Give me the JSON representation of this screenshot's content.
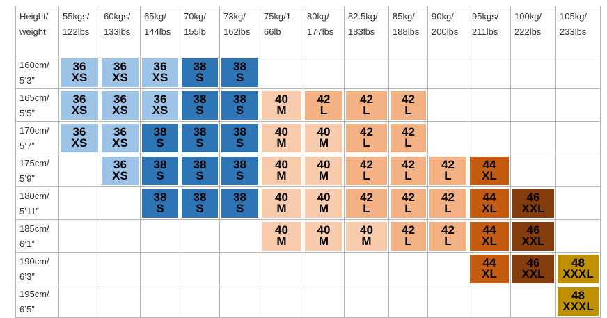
{
  "table": {
    "columns": [
      "Height/\nweight",
      "55kgs/\n122lbs",
      "60kgs/\n133lbs",
      "65kg/\n144lbs",
      "70kg/\n155lb",
      "73kg/\n162lbs",
      "75kg/1\n66lb",
      "80kg/\n177lbs",
      "82.5kg/\n183lbs",
      "85kg/\n188lbs",
      "90kg/\n200lbs",
      "95kgs/\n211lbs",
      "100kg/\n222lbs",
      "105kg/\n233lbs"
    ],
    "rows": [
      {
        "label": "160cm/\n5’3”",
        "cells": [
          {
            "size": 36,
            "letter": "XS",
            "color": "#9dc3e6"
          },
          {
            "size": 36,
            "letter": "XS",
            "color": "#9dc3e6"
          },
          {
            "size": 36,
            "letter": "XS",
            "color": "#9dc3e6"
          },
          {
            "size": 38,
            "letter": "S",
            "color": "#2e75b6"
          },
          {
            "size": 38,
            "letter": "S",
            "color": "#2e75b6"
          },
          null,
          null,
          null,
          null,
          null,
          null,
          null,
          null
        ]
      },
      {
        "label": "165cm/\n5’5”",
        "cells": [
          {
            "size": 36,
            "letter": "XS",
            "color": "#9dc3e6"
          },
          {
            "size": 36,
            "letter": "XS",
            "color": "#9dc3e6"
          },
          {
            "size": 36,
            "letter": "XS",
            "color": "#9dc3e6"
          },
          {
            "size": 38,
            "letter": "S",
            "color": "#2e75b6"
          },
          {
            "size": 38,
            "letter": "S",
            "color": "#2e75b6"
          },
          {
            "size": 40,
            "letter": "M",
            "color": "#f8cbad"
          },
          {
            "size": 42,
            "letter": "L",
            "color": "#f4b183"
          },
          {
            "size": 42,
            "letter": "L",
            "color": "#f4b183"
          },
          {
            "size": 42,
            "letter": "L",
            "color": "#f4b183"
          },
          null,
          null,
          null,
          null
        ]
      },
      {
        "label": "170cm/\n5’7”",
        "cells": [
          {
            "size": 36,
            "letter": "XS",
            "color": "#9dc3e6"
          },
          {
            "size": 36,
            "letter": "XS",
            "color": "#9dc3e6"
          },
          {
            "size": 38,
            "letter": "S",
            "color": "#2e75b6"
          },
          {
            "size": 38,
            "letter": "S",
            "color": "#2e75b6"
          },
          {
            "size": 38,
            "letter": "S",
            "color": "#2e75b6"
          },
          {
            "size": 40,
            "letter": "M",
            "color": "#f8cbad"
          },
          {
            "size": 40,
            "letter": "M",
            "color": "#f8cbad"
          },
          {
            "size": 42,
            "letter": "L",
            "color": "#f4b183"
          },
          {
            "size": 42,
            "letter": "L",
            "color": "#f4b183"
          },
          null,
          null,
          null,
          null
        ]
      },
      {
        "label": "175cm/\n5’9”",
        "cells": [
          null,
          {
            "size": 36,
            "letter": "XS",
            "color": "#9dc3e6"
          },
          {
            "size": 38,
            "letter": "S",
            "color": "#2e75b6"
          },
          {
            "size": 38,
            "letter": "S",
            "color": "#2e75b6"
          },
          {
            "size": 38,
            "letter": "S",
            "color": "#2e75b6"
          },
          {
            "size": 40,
            "letter": "M",
            "color": "#f8cbad"
          },
          {
            "size": 40,
            "letter": "M",
            "color": "#f8cbad"
          },
          {
            "size": 42,
            "letter": "L",
            "color": "#f4b183"
          },
          {
            "size": 42,
            "letter": "L",
            "color": "#f4b183"
          },
          {
            "size": 42,
            "letter": "L",
            "color": "#f4b183"
          },
          {
            "size": 44,
            "letter": "XL",
            "color": "#c55a11"
          },
          null,
          null
        ]
      },
      {
        "label": "180cm/\n5’11”",
        "cells": [
          null,
          null,
          {
            "size": 38,
            "letter": "S",
            "color": "#2e75b6"
          },
          {
            "size": 38,
            "letter": "S",
            "color": "#2e75b6"
          },
          {
            "size": 38,
            "letter": "S",
            "color": "#2e75b6"
          },
          {
            "size": 40,
            "letter": "M",
            "color": "#f8cbad"
          },
          {
            "size": 40,
            "letter": "M",
            "color": "#f8cbad"
          },
          {
            "size": 42,
            "letter": "L",
            "color": "#f4b183"
          },
          {
            "size": 42,
            "letter": "L",
            "color": "#f4b183"
          },
          {
            "size": 42,
            "letter": "L",
            "color": "#f4b183"
          },
          {
            "size": 44,
            "letter": "XL",
            "color": "#c55a11"
          },
          {
            "size": 46,
            "letter": "XXL",
            "color": "#843c0c"
          },
          null
        ]
      },
      {
        "label": "185cm/\n6’1”",
        "cells": [
          null,
          null,
          null,
          null,
          null,
          {
            "size": 40,
            "letter": "M",
            "color": "#f8cbad"
          },
          {
            "size": 40,
            "letter": "M",
            "color": "#f8cbad"
          },
          {
            "size": 40,
            "letter": "M",
            "color": "#f8cbad"
          },
          {
            "size": 42,
            "letter": "L",
            "color": "#f4b183"
          },
          {
            "size": 42,
            "letter": "L",
            "color": "#f4b183"
          },
          {
            "size": 44,
            "letter": "XL",
            "color": "#c55a11"
          },
          {
            "size": 46,
            "letter": "XXL",
            "color": "#843c0c"
          },
          null
        ]
      },
      {
        "label": "190cm/\n6’3”",
        "cells": [
          null,
          null,
          null,
          null,
          null,
          null,
          null,
          null,
          null,
          null,
          {
            "size": 44,
            "letter": "XL",
            "color": "#c55a11"
          },
          {
            "size": 46,
            "letter": "XXL",
            "color": "#843c0c"
          },
          {
            "size": 48,
            "letter": "XXXL",
            "color": "#bf9000"
          }
        ]
      },
      {
        "label": "195cm/\n6’5”",
        "cells": [
          null,
          null,
          null,
          null,
          null,
          null,
          null,
          null,
          null,
          null,
          null,
          null,
          {
            "size": 48,
            "letter": "XXXL",
            "color": "#bf9000"
          }
        ]
      }
    ]
  }
}
